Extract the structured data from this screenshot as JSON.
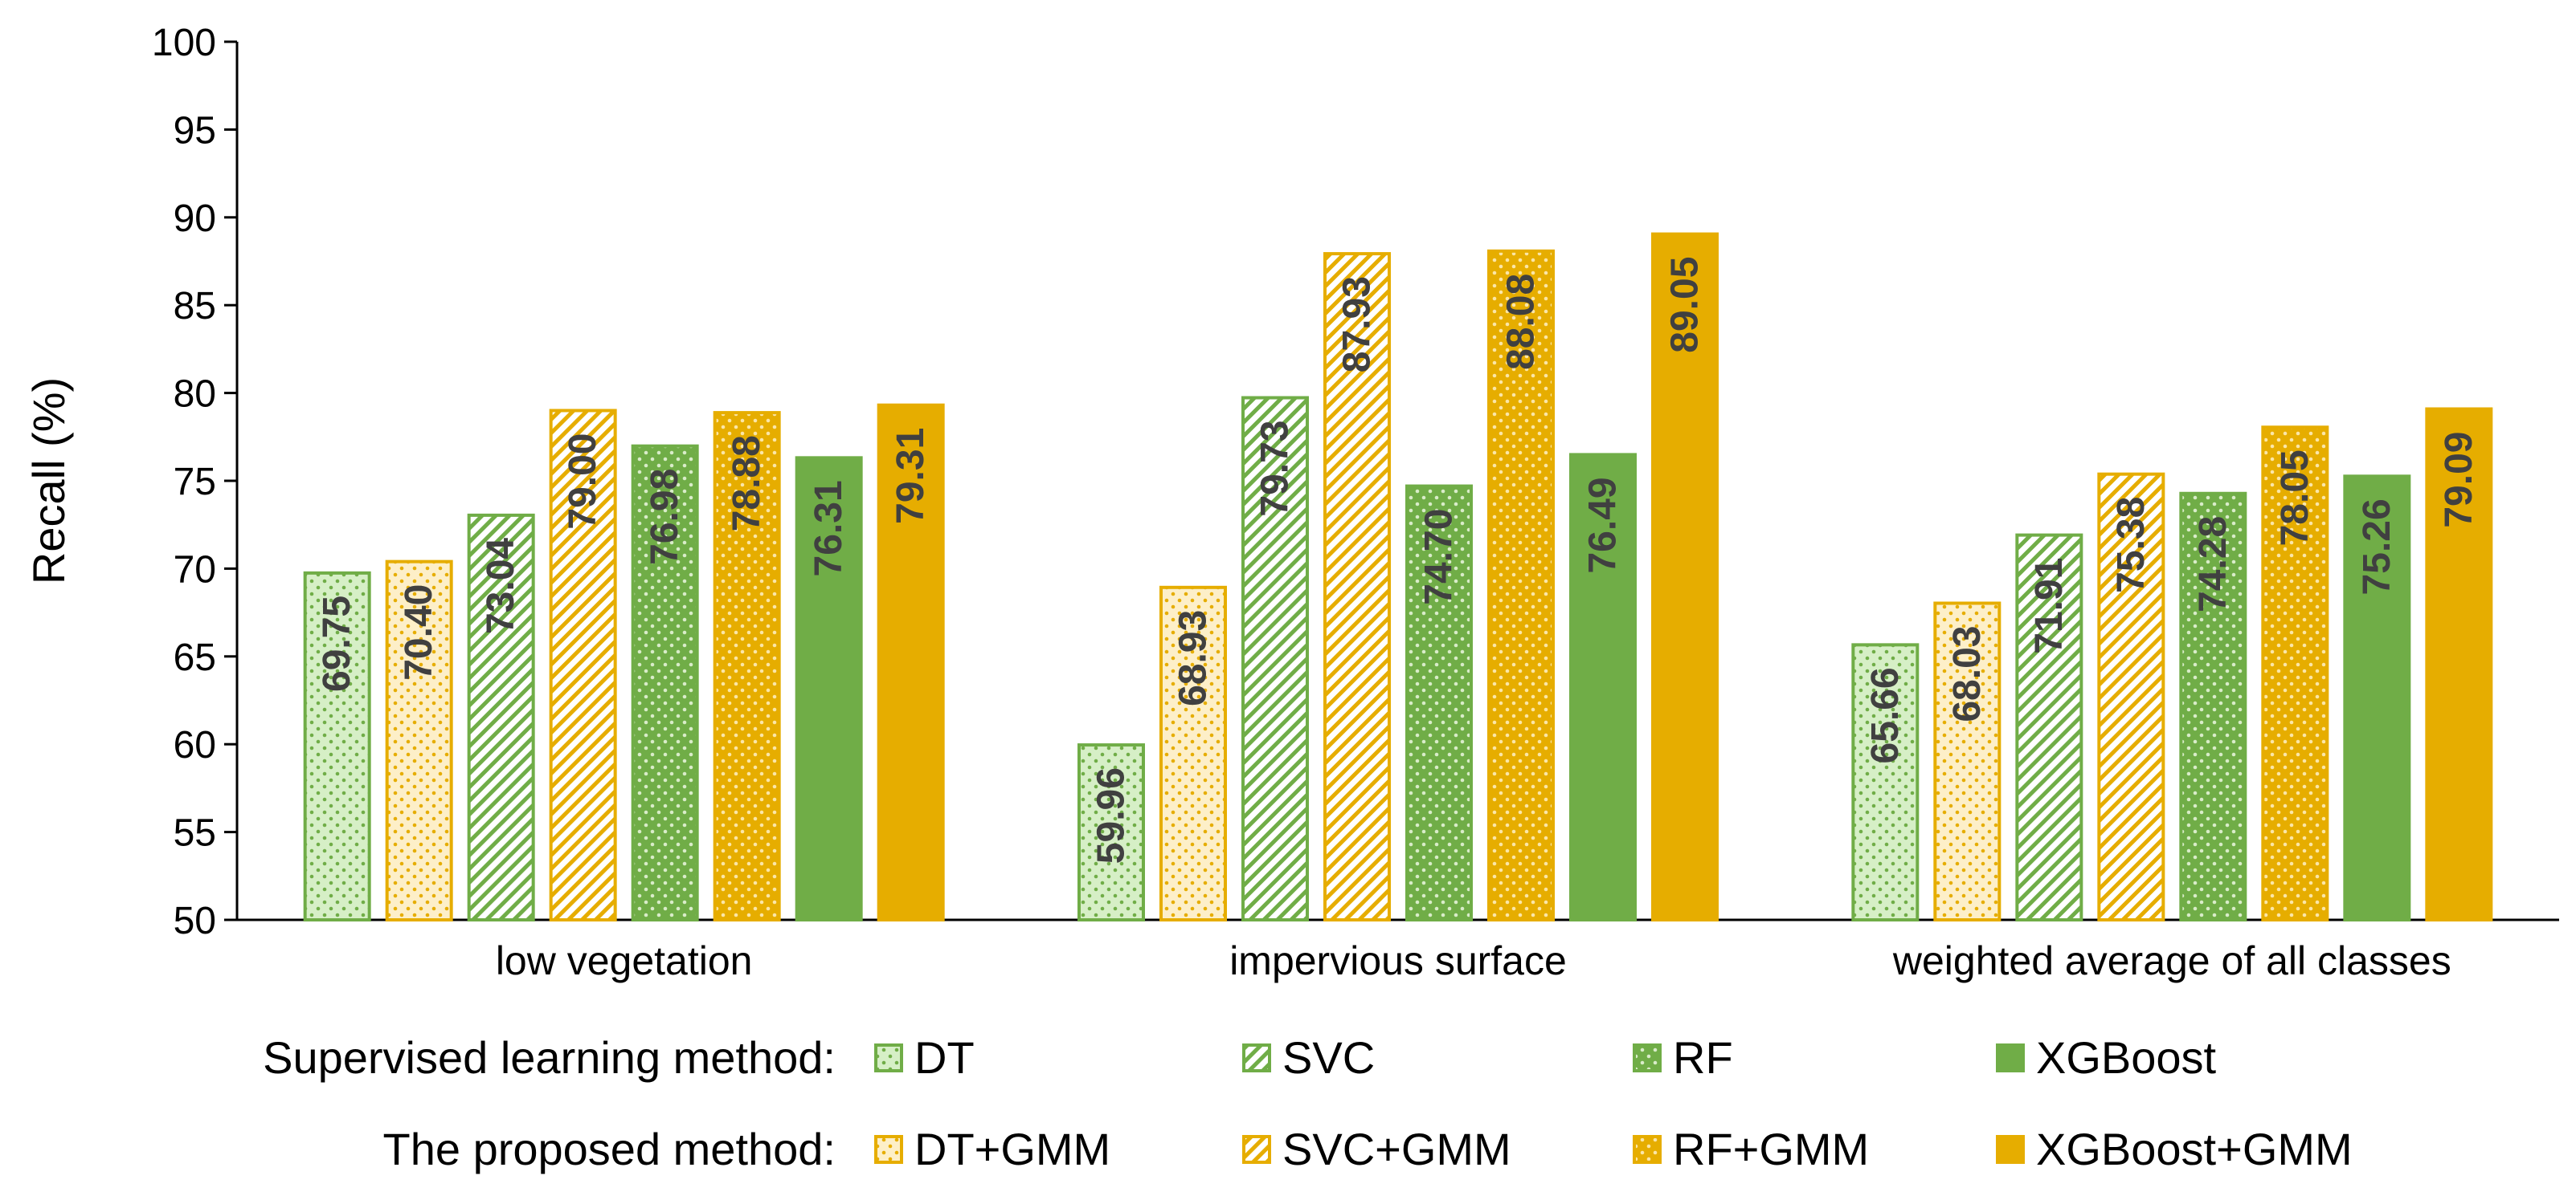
{
  "chart_data": {
    "type": "bar",
    "title": "",
    "xlabel": "",
    "ylabel": "Recall (%)",
    "ylim": [
      50,
      100
    ],
    "yticks": [
      50,
      55,
      60,
      65,
      70,
      75,
      80,
      85,
      90,
      95,
      100
    ],
    "categories": [
      "low vegetation",
      "impervious surface",
      "weighted average of all classes"
    ],
    "series": [
      {
        "name": "DT",
        "values": [
          69.75,
          59.96,
          65.66
        ],
        "value_labels": [
          "69.75",
          "59.96",
          "65.66"
        ],
        "fill": "#d6efc6",
        "stroke": "#70ad47",
        "pattern": "dots",
        "pattern_color": "#70ad47"
      },
      {
        "name": "DT+GMM",
        "values": [
          70.4,
          68.93,
          68.03
        ],
        "value_labels": [
          "70.40",
          "68.93",
          "68.03"
        ],
        "fill": "#fdefc8",
        "stroke": "#e6ad00",
        "pattern": "dots",
        "pattern_color": "#e6ad00"
      },
      {
        "name": "SVC",
        "values": [
          73.04,
          79.73,
          71.91
        ],
        "value_labels": [
          "73.04",
          "79.73",
          "71.91"
        ],
        "fill": "#ffffff",
        "stroke": "#70ad47",
        "pattern": "diag",
        "pattern_color": "#70ad47"
      },
      {
        "name": "SVC+GMM",
        "values": [
          79.0,
          87.93,
          75.38
        ],
        "value_labels": [
          "79.00",
          "87.93",
          "75.38"
        ],
        "fill": "#ffffff",
        "stroke": "#e6ad00",
        "pattern": "diag",
        "pattern_color": "#e6ad00"
      },
      {
        "name": "RF",
        "values": [
          76.98,
          74.7,
          74.28
        ],
        "value_labels": [
          "76.98",
          "74.70",
          "74.28"
        ],
        "fill": "#70ad47",
        "stroke": "#70ad47",
        "pattern": "lightdots",
        "pattern_color": "#d9ecc9"
      },
      {
        "name": "RF+GMM",
        "values": [
          78.88,
          88.08,
          78.05
        ],
        "value_labels": [
          "78.88",
          "88.08",
          "78.05"
        ],
        "fill": "#e6ad00",
        "stroke": "#e6ad00",
        "pattern": "lightdots",
        "pattern_color": "#fbe6a8"
      },
      {
        "name": "XGBoost",
        "values": [
          76.31,
          76.49,
          75.26
        ],
        "value_labels": [
          "76.31",
          "76.49",
          "75.26"
        ],
        "fill": "#70ad47",
        "stroke": "#70ad47",
        "pattern": "solid",
        "pattern_color": "#70ad47"
      },
      {
        "name": "XGBoost+GMM",
        "values": [
          79.31,
          89.05,
          79.09
        ],
        "value_labels": [
          "79.31",
          "89.05",
          "79.09"
        ],
        "fill": "#e6ad00",
        "stroke": "#e6ad00",
        "pattern": "solid",
        "pattern_color": "#e6ad00"
      }
    ],
    "legend": {
      "placement": "bottom",
      "rows": [
        {
          "title": "Supervised learning method:",
          "entries": [
            "DT",
            "SVC",
            "RF",
            "XGBoost"
          ]
        },
        {
          "title": "The proposed method:",
          "entries": [
            "DT+GMM",
            "SVC+GMM",
            "RF+GMM",
            "XGBoost+GMM"
          ]
        }
      ]
    },
    "grid": false
  }
}
